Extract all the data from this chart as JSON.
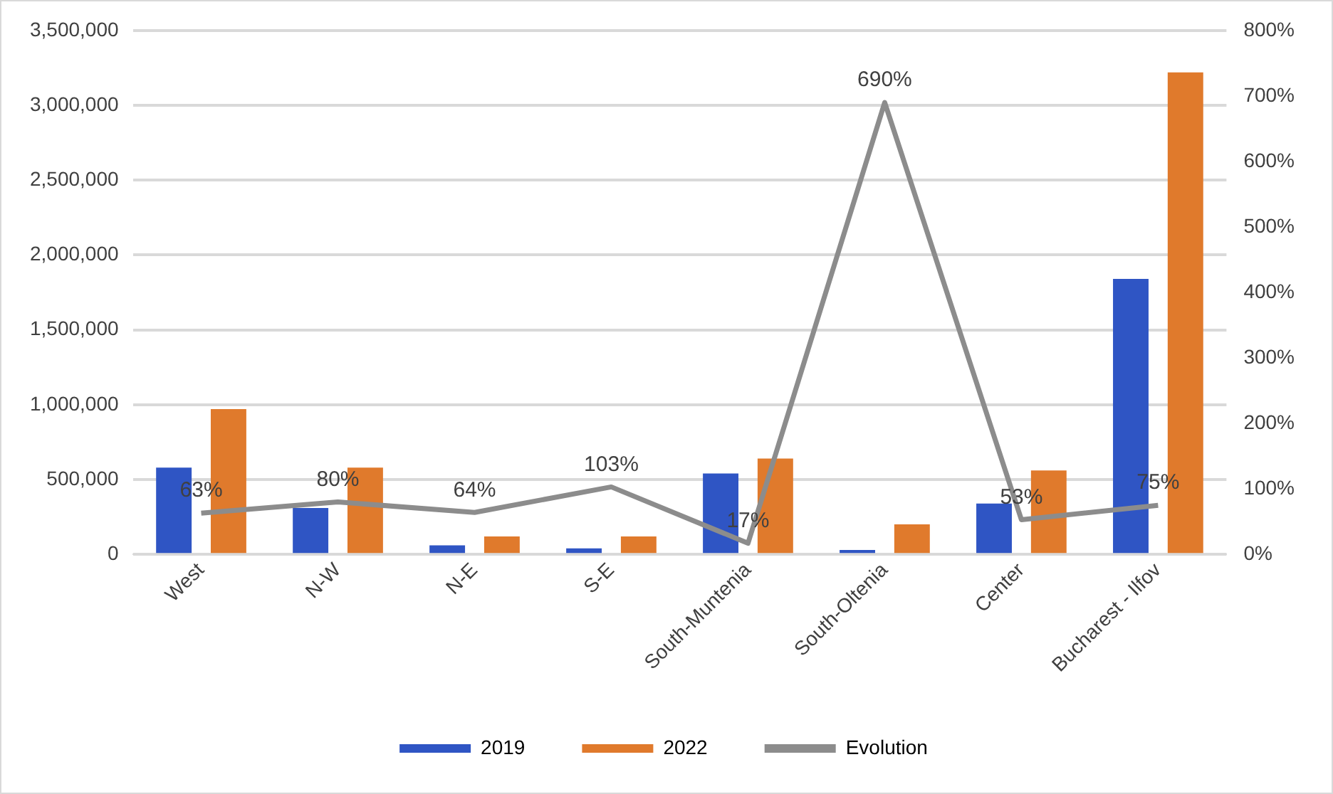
{
  "chart_data": {
    "type": "bar",
    "categories": [
      "West",
      "N-W",
      "N-E",
      "S-E",
      "South-Muntenia",
      "South-Oltenia",
      "Center",
      "Bucharest - Ilfov"
    ],
    "series": [
      {
        "name": "2019",
        "color": "#2f55c4",
        "values": [
          580000,
          310000,
          60000,
          40000,
          540000,
          30000,
          340000,
          1840000
        ]
      },
      {
        "name": "2022",
        "color": "#e07a2c",
        "values": [
          970000,
          580000,
          120000,
          120000,
          640000,
          200000,
          560000,
          3220000
        ]
      },
      {
        "name": "Evolution",
        "type": "line",
        "axis": "y2",
        "color": "#8c8c8c",
        "values": [
          63,
          80,
          64,
          103,
          17,
          690,
          53,
          75
        ],
        "value_labels": [
          "63%",
          "80%",
          "64%",
          "103%",
          "17%",
          "690%",
          "53%",
          "75%"
        ]
      }
    ],
    "ylim": [
      0,
      3500000
    ],
    "yticks": [
      {
        "value": 0,
        "label": "0"
      },
      {
        "value": 500000,
        "label": "500,000"
      },
      {
        "value": 1000000,
        "label": "1,000,000"
      },
      {
        "value": 1500000,
        "label": "1,500,000"
      },
      {
        "value": 2000000,
        "label": "2,000,000"
      },
      {
        "value": 2500000,
        "label": "2,500,000"
      },
      {
        "value": 3000000,
        "label": "3,000,000"
      },
      {
        "value": 3500000,
        "label": "3,500,000"
      }
    ],
    "y2lim": [
      0,
      800
    ],
    "y2ticks": [
      {
        "value": 0,
        "label": "0%"
      },
      {
        "value": 100,
        "label": "100%"
      },
      {
        "value": 200,
        "label": "200%"
      },
      {
        "value": 300,
        "label": "300%"
      },
      {
        "value": 400,
        "label": "400%"
      },
      {
        "value": 500,
        "label": "500%"
      },
      {
        "value": 600,
        "label": "600%"
      },
      {
        "value": 700,
        "label": "700%"
      },
      {
        "value": 800,
        "label": "800%"
      }
    ],
    "grid": "y",
    "legend": "bottom",
    "marker": "none"
  }
}
